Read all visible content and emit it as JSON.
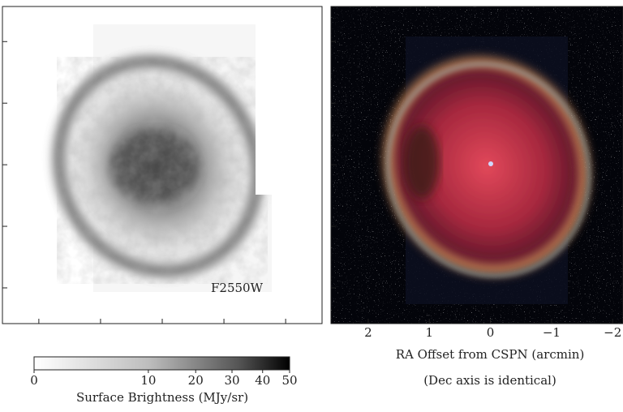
{
  "chart_data": [
    {
      "type": "image",
      "panel": "grayscale",
      "label": "F2550W",
      "xlim": [
        2.59,
        -2.59
      ],
      "ylim": [
        -2.58,
        2.57
      ],
      "xticks": [
        2,
        1,
        0,
        -1,
        -2
      ],
      "yticks": [
        2,
        1,
        0,
        -1,
        -2
      ],
      "xtick_labels": false,
      "ytick_labels": false
    },
    {
      "type": "image",
      "panel": "color",
      "xlim": [
        2.61,
        -2.17
      ],
      "ylim": [
        -2.58,
        2.57
      ],
      "xticks": [
        2,
        1,
        0,
        {
          "value": -1,
          "label": "−1"
        },
        {
          "value": -2,
          "label": "−2"
        }
      ],
      "yticks": [
        2,
        1,
        0,
        -1,
        -2
      ],
      "xtick_labels": true,
      "ytick_labels": false,
      "xlabel": "RA Offset from CSPN (arcmin)",
      "caption": "(Dec axis is identical)"
    },
    {
      "type": "colorbar",
      "label": "Surface Brightness (MJy/sr)",
      "scale": "sqrt",
      "lim": [
        0,
        50
      ],
      "ticks": [
        0,
        10,
        20,
        30,
        40,
        50
      ]
    }
  ]
}
